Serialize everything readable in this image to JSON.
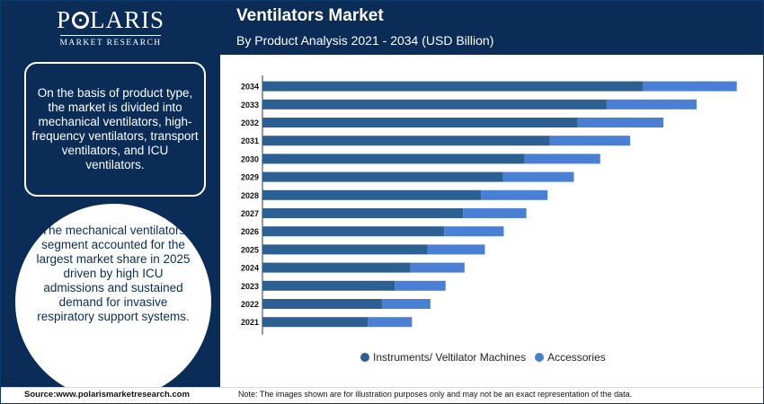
{
  "brand": {
    "name_pre": "P",
    "name_post": "LARIS",
    "tagline": "MARKET RESEARCH"
  },
  "sidebar": {
    "box_text": "On the basis of product type, the market is divided into mechanical ventilators, high-frequency ventilators, transport ventilators, and ICU ventilators.",
    "circle_text": "The mechanical ventilators segment accounted for the largest market share in 2025 driven by high ICU admissions and sustained demand for invasive respiratory support systems."
  },
  "footer": {
    "source": "Source:www.polarismarketresearch.com",
    "note": "Note: The images shown are for illustration purposes only and may not be an exact representation of the data."
  },
  "colors": {
    "primary": "#0b2c57",
    "series1": "#2c5f92",
    "series2": "#4a7fd6"
  },
  "chart_data": {
    "type": "bar",
    "orientation": "horizontal",
    "stacked": true,
    "title": "Ventilators Market",
    "subtitle": "By Product Analysis 2021 - 2034 (USD Billion)",
    "categories": [
      "2034",
      "2033",
      "2032",
      "2031",
      "2030",
      "2029",
      "2028",
      "2027",
      "2026",
      "2025",
      "2024",
      "2023",
      "2022",
      "2021"
    ],
    "series": [
      {
        "name": "Instruments/ Veltilator Machines",
        "color": "#2c5f92",
        "values": [
          82.4,
          74.6,
          68.3,
          62.3,
          56.8,
          52.1,
          47.4,
          43.5,
          39.4,
          35.8,
          32.1,
          28.7,
          25.9,
          22.8
        ]
      },
      {
        "name": "Accessories",
        "color": "#4a7fd6",
        "values": [
          20.4,
          19.5,
          18.6,
          17.4,
          16.4,
          15.4,
          14.4,
          13.7,
          12.9,
          12.4,
          11.7,
          11.0,
          10.5,
          9.6
        ]
      }
    ],
    "xlim": [
      0,
      105
    ],
    "grid": false,
    "legend_position": "bottom"
  }
}
